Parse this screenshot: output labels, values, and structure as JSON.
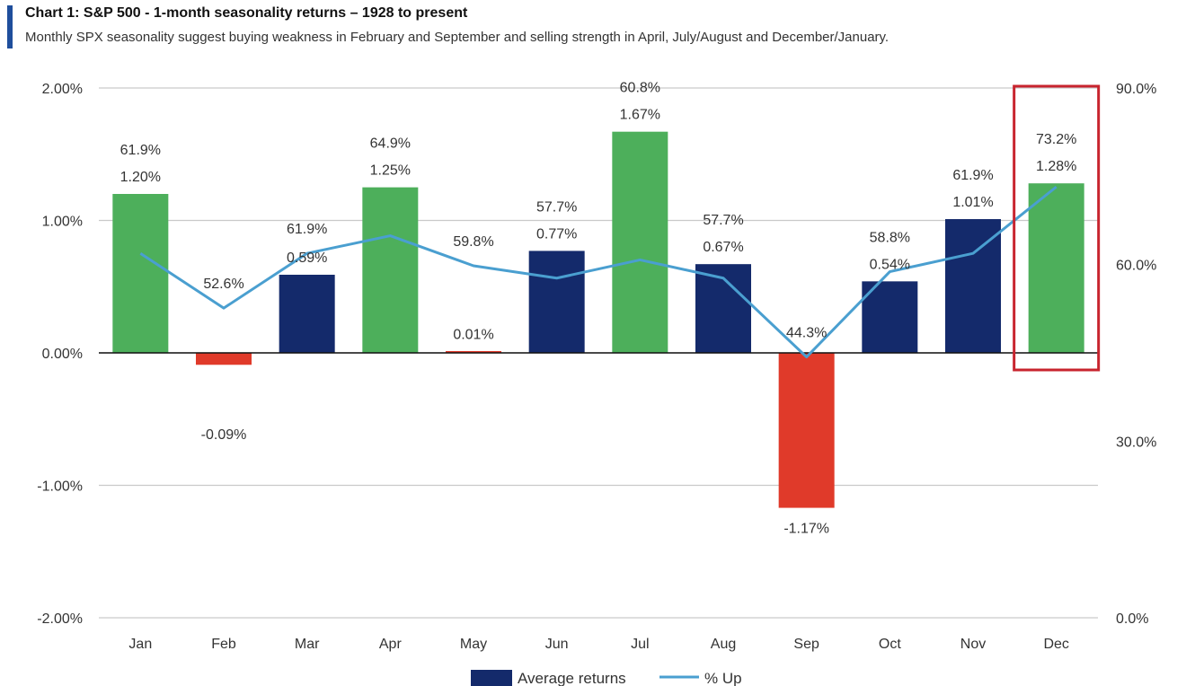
{
  "header": {
    "title": "Chart 1: S&P 500 - 1-month seasonality returns – 1928 to present",
    "subtitle": "Monthly SPX seasonality suggest buying weakness in February and September and selling strength in April, July/August and December/January."
  },
  "chart_data": {
    "type": "bar",
    "categories": [
      "Jan",
      "Feb",
      "Mar",
      "Apr",
      "May",
      "Jun",
      "Jul",
      "Aug",
      "Sep",
      "Oct",
      "Nov",
      "Dec"
    ],
    "series": [
      {
        "name": "Average returns",
        "type": "bar",
        "axis": "left",
        "values": [
          1.2,
          -0.09,
          0.59,
          1.25,
          0.01,
          0.77,
          1.67,
          0.67,
          -1.17,
          0.54,
          1.01,
          1.28
        ],
        "labels": [
          "1.20%",
          "-0.09%",
          "0.59%",
          "1.25%",
          "0.01%",
          "0.77%",
          "1.67%",
          "0.67%",
          "-1.17%",
          "0.54%",
          "1.01%",
          "1.28%"
        ],
        "colors": [
          "#4daf5b",
          "#e03a2a",
          "#142a6b",
          "#4daf5b",
          "#e03a2a",
          "#142a6b",
          "#4daf5b",
          "#142a6b",
          "#e03a2a",
          "#142a6b",
          "#142a6b",
          "#4daf5b"
        ]
      },
      {
        "name": "% Up",
        "type": "line",
        "axis": "right",
        "values": [
          61.9,
          52.6,
          61.9,
          64.9,
          59.8,
          57.7,
          60.8,
          57.7,
          44.3,
          58.8,
          61.9,
          73.2
        ],
        "labels": [
          "61.9%",
          "52.6%",
          "61.9%",
          "64.9%",
          "59.8%",
          "57.7%",
          "60.8%",
          "57.7%",
          "44.3%",
          "58.8%",
          "61.9%",
          "73.2%"
        ],
        "color": "#4a9fd0"
      }
    ],
    "y_left": {
      "range": [
        -2.0,
        2.0
      ],
      "ticks": [
        2.0,
        1.0,
        0.0,
        -1.0,
        -2.0
      ],
      "tick_labels": [
        "2.00%",
        "1.00%",
        "0.00%",
        "-1.00%",
        "-2.00%"
      ]
    },
    "y_right": {
      "range": [
        0,
        90
      ],
      "ticks": [
        90,
        60,
        30,
        0
      ],
      "tick_labels": [
        "90.0%",
        "60.0%",
        "30.0%",
        "0.0%"
      ]
    },
    "grid": true,
    "legend_position": "bottom-center",
    "highlight": {
      "category": "Dec",
      "color": "#c8242e"
    },
    "colors": {
      "up_strong": "#4daf5b",
      "negative": "#e03a2a",
      "normal": "#142a6b",
      "line": "#4a9fd0",
      "grid": "#c9c9c9",
      "accent": "#1f4e9c"
    }
  }
}
